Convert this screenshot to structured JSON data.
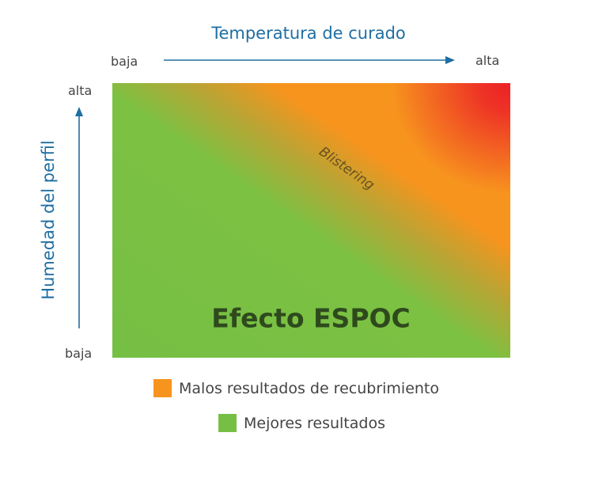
{
  "axes": {
    "x": {
      "title": "Temperatura de curado",
      "low_label": "baja",
      "high_label": "alta"
    },
    "y": {
      "title": "Humedad del perfil",
      "low_label": "baja",
      "high_label": "alta"
    }
  },
  "plot": {
    "zone_label": "Blistering",
    "center_label": "Efecto ESPOC",
    "colors": {
      "green": "#76bf45",
      "orange": "#f7941e",
      "red": "#ec2127"
    }
  },
  "legend": {
    "items": [
      {
        "label": "Malos resultados de recubrimiento",
        "color": "#f7941e"
      },
      {
        "label": "Mejores resultados",
        "color": "#76bf45"
      }
    ]
  },
  "colors": {
    "axis_blue": "#1f6ea3",
    "text_gray": "#444444",
    "center_text": "#2e4a1d"
  }
}
